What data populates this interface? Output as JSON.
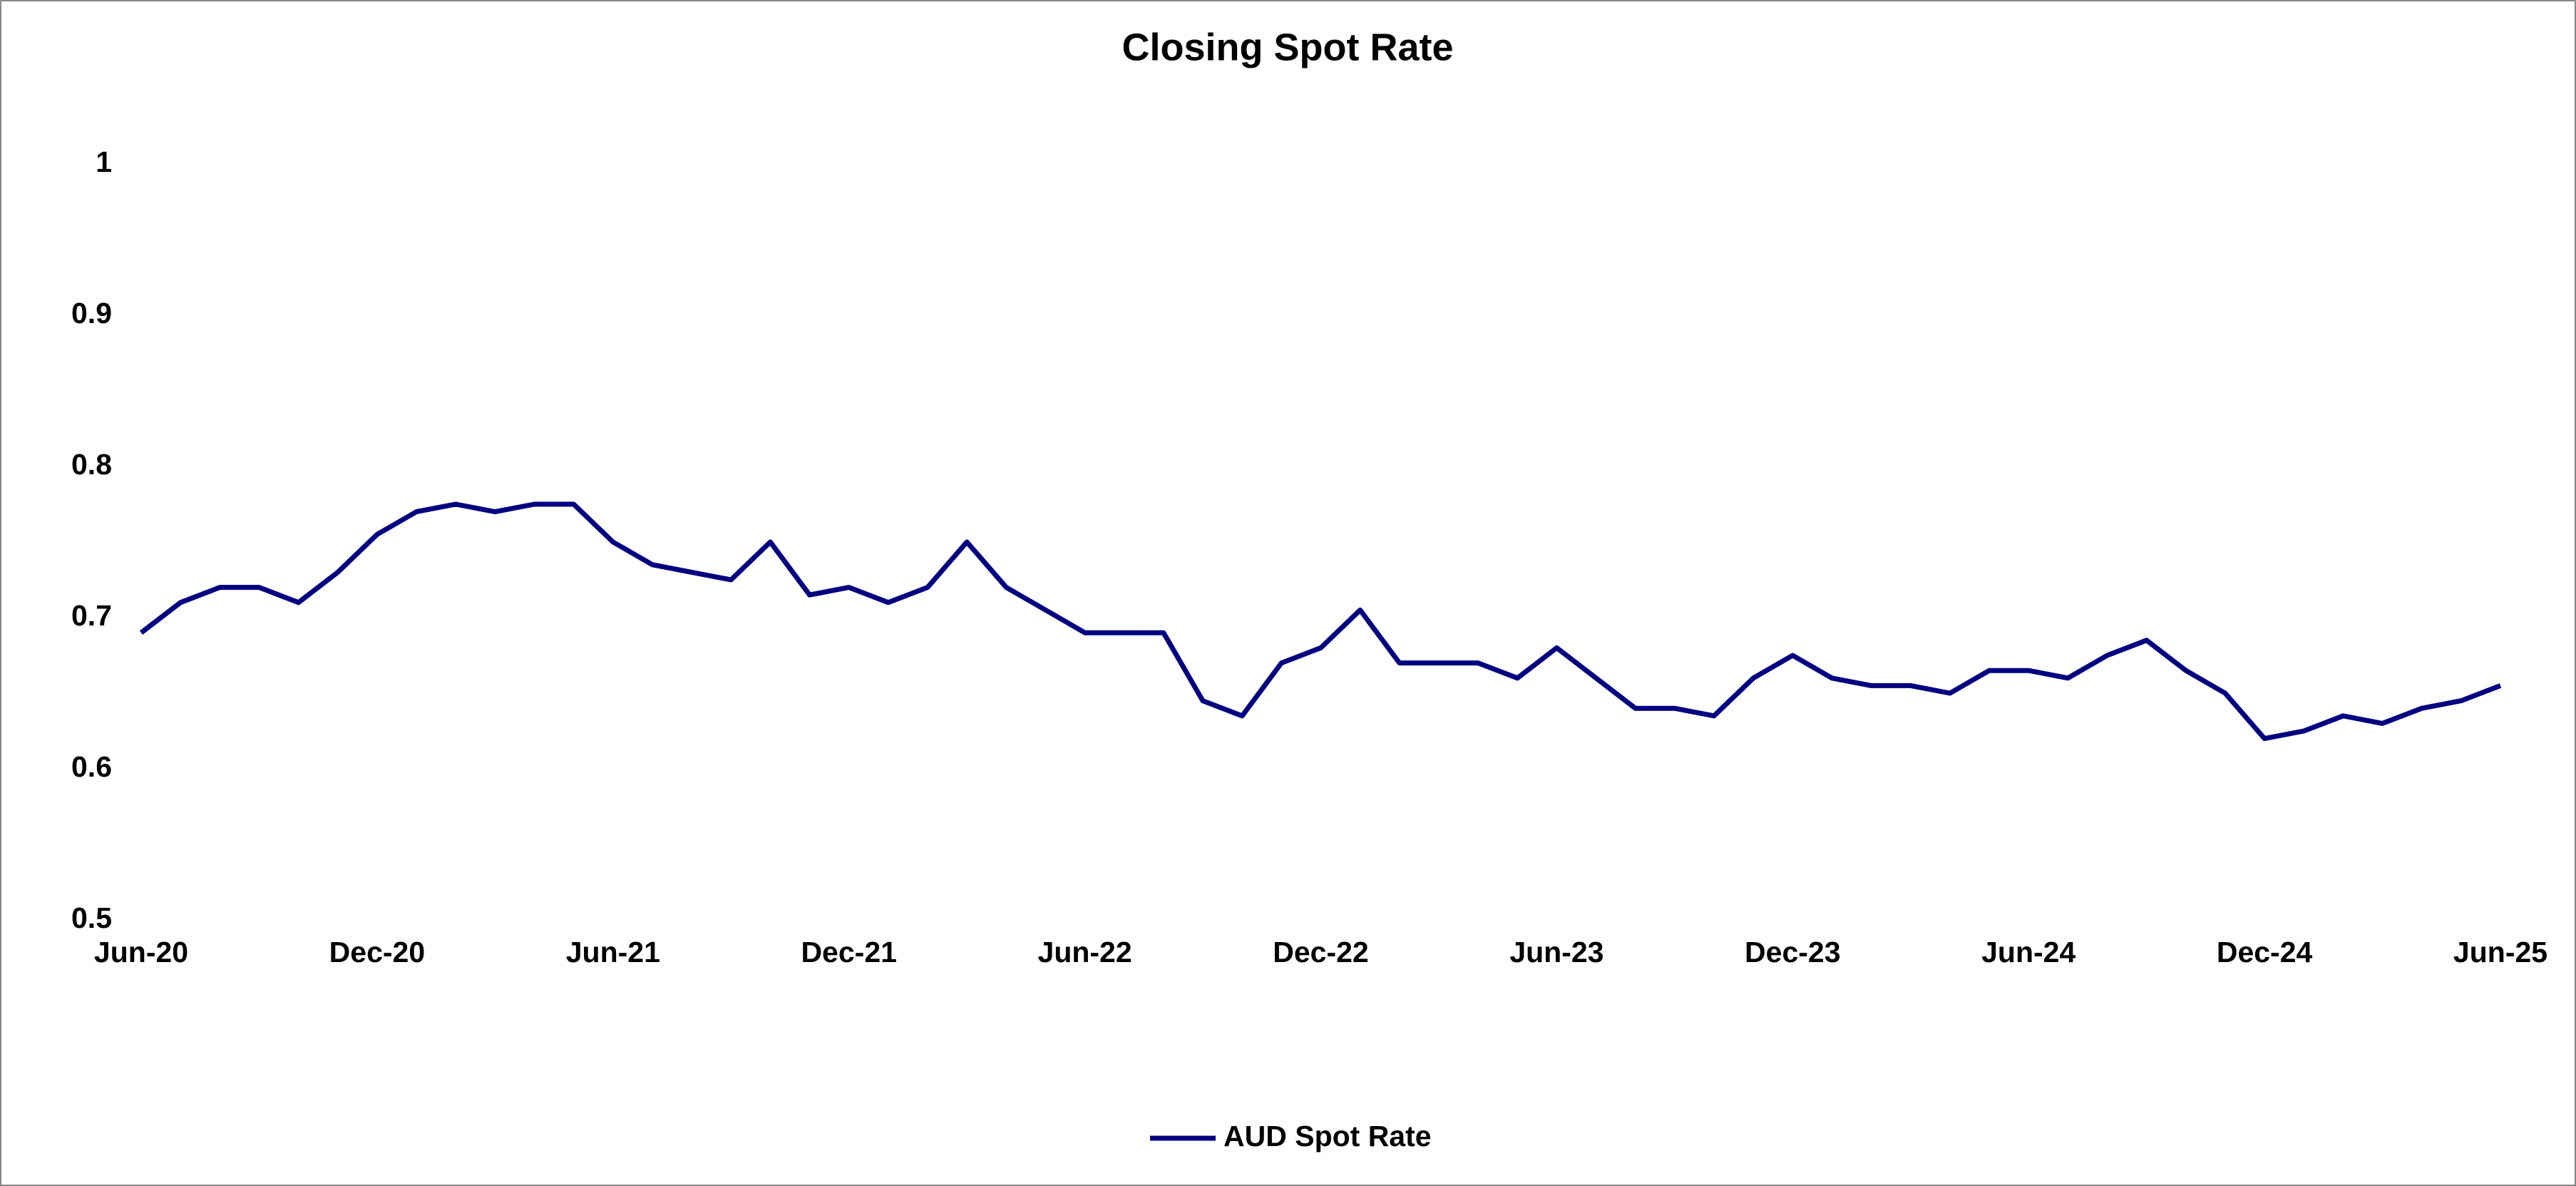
{
  "chart_data": {
    "type": "line",
    "title": "Closing Spot Rate",
    "categories": [
      "Jun-20",
      null,
      null,
      null,
      null,
      null,
      "Dec-20",
      null,
      null,
      null,
      null,
      null,
      "Jun-21",
      null,
      null,
      null,
      null,
      null,
      "Dec-21",
      null,
      null,
      null,
      null,
      null,
      "Jun-22",
      null,
      null,
      null,
      null,
      null,
      "Dec-22",
      null,
      null,
      null,
      null,
      null,
      "Jun-23",
      null,
      null,
      null,
      null,
      null,
      "Dec-23",
      null,
      null,
      null,
      null,
      null,
      "Jun-24",
      null,
      null,
      null,
      null,
      null,
      "Dec-24",
      null,
      null,
      null,
      null,
      null,
      "Jun-25"
    ],
    "series": [
      {
        "name": "AUD Spot Rate",
        "color": "#000080",
        "values": [
          0.69,
          0.71,
          0.72,
          0.72,
          0.71,
          0.73,
          0.755,
          0.77,
          0.775,
          0.77,
          0.775,
          0.775,
          0.75,
          0.735,
          0.73,
          0.725,
          0.75,
          0.715,
          0.72,
          0.71,
          0.72,
          0.75,
          0.72,
          0.705,
          0.69,
          0.69,
          0.69,
          0.645,
          0.635,
          0.67,
          0.68,
          0.705,
          0.67,
          0.67,
          0.67,
          0.66,
          0.68,
          0.66,
          0.64,
          0.64,
          0.635,
          0.66,
          0.675,
          0.66,
          0.655,
          0.655,
          0.65,
          0.665,
          0.665,
          0.66,
          0.675,
          0.685,
          0.665,
          0.65,
          0.62,
          0.625,
          0.635,
          0.63,
          0.64,
          0.645,
          0.655
        ]
      }
    ],
    "ylim": [
      0.5,
      1
    ],
    "yticks": [
      0.5,
      0.6,
      0.7,
      0.8,
      0.9,
      1
    ],
    "grid": false,
    "legend": "bottom"
  }
}
